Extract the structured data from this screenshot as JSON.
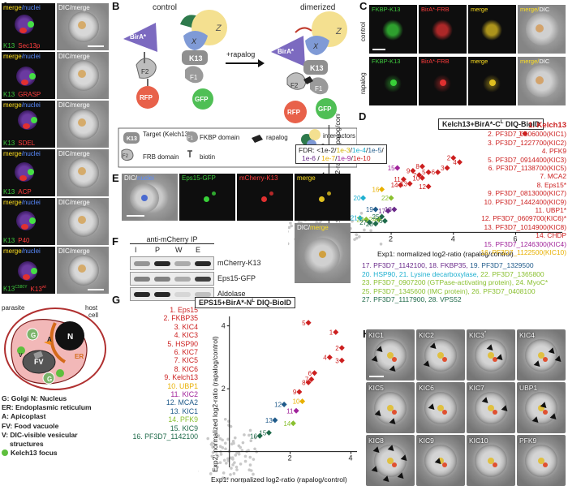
{
  "panel_letters": {
    "a": "A",
    "b": "B",
    "c": "C",
    "d": "D",
    "e": "E",
    "f": "F",
    "g": "G",
    "h": "H"
  },
  "panelA": {
    "rows": [
      {
        "green": "K13",
        "red": "Sec13p",
        "top": "merge",
        "topnuc": "/nuclei",
        "dic": "DIC/merge"
      },
      {
        "green": "K13",
        "red": "GRASP",
        "top": "merge",
        "topnuc": "/nuclei",
        "dic": "DIC/merge"
      },
      {
        "green": "K13",
        "red": "SDEL",
        "top": "merge",
        "topnuc": "/nuclei",
        "dic": "DIC/merge"
      },
      {
        "green": "K13",
        "red": "ACP",
        "top": "merge",
        "topnuc": "/nuclei",
        "dic": "DIC/merge"
      },
      {
        "green": "K13",
        "red": "P40",
        "top": "merge",
        "topnuc": "/nuclei",
        "dic": "DIC/merge"
      },
      {
        "green": "K13",
        "greensup": "C580Y",
        "red": "K13",
        "redsup": "wt",
        "top": "merge",
        "topnuc": "/nuclei",
        "dic": "DIC/merge"
      }
    ],
    "diagram": {
      "parasite": "parasite",
      "host": "host cell",
      "N": "N",
      "ER": "ER",
      "FV": "FV",
      "A": "A",
      "G": "G",
      "V": "V"
    },
    "legend": [
      "G: Golgi    N: Nucleus",
      "ER: Endoplasmic reticulum",
      "A: Apicoplast",
      "FV: Food vacuole",
      "V: DIC-visible vesicular",
      "structures",
      "Kelch13 focus"
    ]
  },
  "panelB": {
    "control": "control",
    "dimerized": "dimerized",
    "rapalog": "+rapalog",
    "labels": {
      "birA": "BirA*",
      "f2": "F2",
      "rfp": "RFP",
      "f1": "F1",
      "gfp": "GFP",
      "k13": "K13",
      "x": "X",
      "y": "Y",
      "z": "Z"
    },
    "legend": {
      "target": "Target (Kelch13)",
      "fkbp": "FKBP domain",
      "rapalog": "rapalog",
      "inter": "inter-actors",
      "frb": "FRB domain",
      "biotin": "biotin",
      "k13": "K13",
      "f1": "F1",
      "f2": "F2"
    }
  },
  "panelC": {
    "rows": [
      "control",
      "rapalog"
    ],
    "cols": [
      "FKBP-K13",
      "BirA*-FRB",
      "merge",
      "merge/DIC"
    ]
  },
  "panelD": {
    "title": "Kelch13+BirA*-C",
    "title_sup": "L",
    "title_end": " DIQ-BioID",
    "fdr_parts": [
      "FDR: <1e-2/",
      "1e-3",
      "/",
      "1e-4",
      "/",
      "1e-5",
      "/",
      "1e-6",
      " / ",
      "1e-7",
      "/",
      "1e-9",
      "/",
      "1e-10"
    ],
    "list": [
      "1. Kelch13",
      "2. PF3D7_0606000(KIC1)",
      "3. PF3D7_1227700(KIC2)",
      "4. PFK9",
      "5. PF3D7_0914400(KIC3)",
      "6. PF3D7_1138700(KIC5)",
      "7. MCA2",
      "8. Eps15*",
      "9. PF3D7_0813000(KIC7)",
      "10. PF3D7_1442400(KIC9)",
      "11. UBP1*",
      "12. PF3D7_0609700(KIC6)*",
      "13. PF3D7_1014900(KIC8)",
      "14. CHDP",
      "15. PF3D7_1246300(KIC4)",
      "16. PF3D7_1122500(KIC10)"
    ],
    "bottom": [
      {
        "n": "17. PF3D7_1142100, ",
        "m": "18. FKBP35, ",
        "k": "19. PF3D7_1329500"
      },
      {
        "n": "20. HSP90, ",
        "m": "21. Lysine decarboxylase, ",
        "k": "22. PF3D7_1365800"
      },
      {
        "n": "23. PF3D7_0907200 (GTPase-activating protein), 24. MyoC*"
      },
      {
        "n": "25. PF3D7_1345600 (IMC protein), 26. PF3D7_0408100"
      },
      {
        "n": "27. PF3D7_1117900, 28. VPS52"
      }
    ],
    "xlabel": "Exp1: normalized log2-ratio (rapalog/control)",
    "ylabel_a": "Exp2:",
    "ylabel_b": " normalized log2-ratio (rapalog/control)"
  },
  "panelE": {
    "cols": [
      "DIC/nuclei",
      "Eps15-GFP",
      "mCherry-K13",
      "merge"
    ],
    "bottom": "DIC/merge"
  },
  "panelF": {
    "title": "anti-mCherry IP",
    "lanes": [
      "I",
      "P",
      "W",
      "E"
    ],
    "bands": [
      "mCherry-K13",
      "Eps15-GFP",
      "Aldolase"
    ]
  },
  "panelG": {
    "title": "EPS15+BirA*-N",
    "title_sup": "L",
    "title_end": " DIQ-BioID",
    "list": [
      "1. Eps15",
      "2. FKBP35",
      "3. KIC4",
      "4. KIC3",
      "5. HSP90",
      "6. KIC7",
      "7. KIC5",
      "8. KIC6",
      "9. Kelch13",
      "10. UBP1",
      "11. KIC2",
      "12. MCA2",
      "13. KIC1",
      "14. PFK9",
      "15. KIC9",
      "16. PF3D7_1142100"
    ],
    "xlabel": "Exp1: normalized log2-ratio (rapalog/control)",
    "ylabel": "Exp2: normalized log2-ratio (rapalog/control)"
  },
  "panelH": {
    "cells": [
      "KIC1",
      "KIC2",
      "KIC3",
      "KIC4",
      "KIC5",
      "KIC6",
      "KIC7",
      "UBP1",
      "KIC8",
      "KIC9",
      "KIC10",
      "PFK9"
    ],
    "kic3sup": "*"
  },
  "chart_data": [
    {
      "type": "scatter",
      "title": "Kelch13+BirA*-CL DIQ-BioID",
      "xlabel": "Exp1: normalized log2-ratio (rapalog/control)",
      "ylabel": "Exp2: normalized log2-ratio (rapalog/control)",
      "xlim": [
        -1,
        7.5
      ],
      "ylim": [
        -1,
        7.5
      ],
      "xticks": [
        2,
        4,
        6
      ],
      "yticks": [
        2,
        4,
        6
      ],
      "points": [
        {
          "label": "1",
          "x": 6.3,
          "y": 6.9,
          "color": "#cc1f1f"
        },
        {
          "label": "2",
          "x": 4.0,
          "y": 5.2,
          "color": "#cc1f1f"
        },
        {
          "label": "3",
          "x": 3.8,
          "y": 4.5,
          "color": "#cc1f1f"
        },
        {
          "label": "4",
          "x": 4.2,
          "y": 4.9,
          "color": "#cc1f1f"
        },
        {
          "label": "5",
          "x": 3.2,
          "y": 4.2,
          "color": "#cc1f1f"
        },
        {
          "label": "6",
          "x": 3.5,
          "y": 4.2,
          "color": "#cc1f1f"
        },
        {
          "label": "7",
          "x": 2.9,
          "y": 4.0,
          "color": "#cc1f1f"
        },
        {
          "label": "8",
          "x": 3.0,
          "y": 4.6,
          "color": "#cc1f1f"
        },
        {
          "label": "9",
          "x": 2.7,
          "y": 4.3,
          "color": "#cc1f1f"
        },
        {
          "label": "10",
          "x": 3.0,
          "y": 3.8,
          "color": "#cc1f1f"
        },
        {
          "label": "11",
          "x": 2.4,
          "y": 3.7,
          "color": "#cc1f1f"
        },
        {
          "label": "12",
          "x": 3.2,
          "y": 3.2,
          "color": "#cc1f1f"
        },
        {
          "label": "13",
          "x": 2.6,
          "y": 3.4,
          "color": "#cc1f1f"
        },
        {
          "label": "14",
          "x": 2.3,
          "y": 3.3,
          "color": "#cc1f1f"
        },
        {
          "label": "15",
          "x": 2.2,
          "y": 4.5,
          "color": "#a0229a"
        },
        {
          "label": "16",
          "x": 1.7,
          "y": 3.0,
          "color": "#e8b000"
        },
        {
          "label": "17",
          "x": 1.9,
          "y": 1.5,
          "color": "#6a2a8a"
        },
        {
          "label": "18",
          "x": 2.1,
          "y": 1.6,
          "color": "#6a2a8a"
        },
        {
          "label": "19",
          "x": 1.5,
          "y": 1.6,
          "color": "#1f5a8a"
        },
        {
          "label": "20",
          "x": 1.1,
          "y": 2.4,
          "color": "#1fb0d0"
        },
        {
          "label": "21",
          "x": 1.0,
          "y": 1.0,
          "color": "#1fb0d0"
        },
        {
          "label": "22",
          "x": 2.0,
          "y": 2.4,
          "color": "#8ac030"
        },
        {
          "label": "23",
          "x": 1.2,
          "y": 0.9,
          "color": "#8ac030"
        },
        {
          "label": "24",
          "x": 1.6,
          "y": 0.9,
          "color": "#8ac030"
        },
        {
          "label": "25",
          "x": 1.7,
          "y": 1.1,
          "color": "#1f6a4a"
        },
        {
          "label": "26",
          "x": 1.8,
          "y": 0.8,
          "color": "#1f6a4a"
        },
        {
          "label": "27",
          "x": 1.3,
          "y": 0.7,
          "color": "#1f6a4a"
        },
        {
          "label": "28",
          "x": 1.5,
          "y": 0.6,
          "color": "#1f6a4a"
        }
      ]
    },
    {
      "type": "scatter",
      "title": "EPS15+BirA*-NL DIQ-BioID",
      "xlabel": "Exp1: normalized log2-ratio (rapalog/control)",
      "ylabel": "Exp2: normalized log2-ratio (rapalog/control)",
      "xlim": [
        -0.5,
        4.2
      ],
      "ylim": [
        -0.5,
        4.3
      ],
      "xticks": [
        2,
        4
      ],
      "yticks": [
        2,
        4
      ],
      "points": [
        {
          "label": "1",
          "x": 3.5,
          "y": 3.8,
          "color": "#cc1f1f"
        },
        {
          "label": "2",
          "x": 3.7,
          "y": 3.3,
          "color": "#cc1f1f"
        },
        {
          "label": "3",
          "x": 3.7,
          "y": 2.9,
          "color": "#cc1f1f"
        },
        {
          "label": "4",
          "x": 3.3,
          "y": 3.0,
          "color": "#cc1f1f"
        },
        {
          "label": "5",
          "x": 2.6,
          "y": 4.1,
          "color": "#cc1f1f"
        },
        {
          "label": "6",
          "x": 2.8,
          "y": 2.5,
          "color": "#cc1f1f"
        },
        {
          "label": "7",
          "x": 2.7,
          "y": 2.3,
          "color": "#cc1f1f"
        },
        {
          "label": "8",
          "x": 2.6,
          "y": 2.2,
          "color": "#cc1f1f"
        },
        {
          "label": "9",
          "x": 2.3,
          "y": 1.9,
          "color": "#cc1f1f"
        },
        {
          "label": "10",
          "x": 2.4,
          "y": 1.6,
          "color": "#e8b000"
        },
        {
          "label": "11",
          "x": 2.2,
          "y": 1.3,
          "color": "#a0229a"
        },
        {
          "label": "12",
          "x": 1.8,
          "y": 1.5,
          "color": "#1f5a8a"
        },
        {
          "label": "13",
          "x": 1.5,
          "y": 1.0,
          "color": "#1f5a8a"
        },
        {
          "label": "14",
          "x": 2.1,
          "y": 0.9,
          "color": "#8ac030"
        },
        {
          "label": "15",
          "x": 1.3,
          "y": 0.6,
          "color": "#1f6a4a"
        },
        {
          "label": "16",
          "x": 1.0,
          "y": 0.5,
          "color": "#1f6a4a"
        }
      ]
    }
  ]
}
